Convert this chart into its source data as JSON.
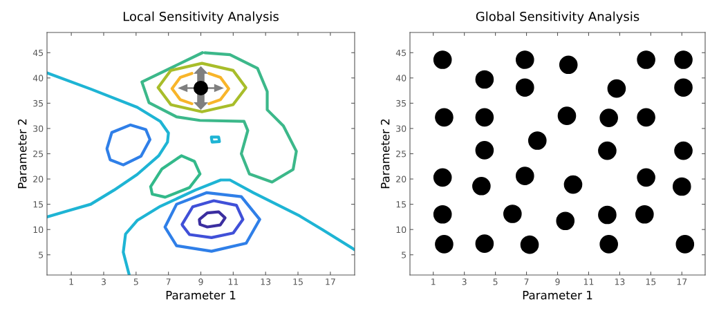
{
  "chart_data": [
    {
      "type": "line",
      "title": "Local Sensitivity Analysis",
      "xlabel": "Parameter 1",
      "ylabel": "Parameter 2",
      "xlim": [
        -0.5,
        18.5
      ],
      "ylim": [
        1,
        49
      ],
      "xticks": [
        1,
        3,
        5,
        7,
        9,
        11,
        13,
        15,
        17
      ],
      "yticks": [
        5,
        10,
        15,
        20,
        25,
        30,
        35,
        40,
        45
      ],
      "grid": false,
      "line_style": "solid",
      "series": [
        {
          "color": "#1eb4d4",
          "x": [
            -0.5,
            2.2,
            5.07,
            6.5,
            7.0,
            6.94,
            6.4,
            5.07,
            3.64,
            2.2,
            0.77,
            -0.5
          ],
          "values": [
            41.0,
            37.8,
            34.2,
            31.4,
            29.1,
            27.3,
            24.6,
            20.9,
            17.8,
            15.0,
            13.7,
            12.5
          ]
        },
        {
          "color": "#1eb4d4",
          "x": [
            4.57,
            4.21,
            4.35,
            5.07,
            6.5,
            8.66,
            10.23,
            10.8,
            12.24,
            13.67,
            15.1,
            16.5,
            18.5
          ],
          "values": [
            1.1,
            5.5,
            9.1,
            11.8,
            14.6,
            17.8,
            19.8,
            19.8,
            17.3,
            15.0,
            12.7,
            10.0,
            6.0
          ]
        },
        {
          "color": "#1eb4d4",
          "x": [
            9.65,
            10.1,
            10.15,
            9.7,
            9.65
          ],
          "values": [
            28.3,
            28.3,
            27.4,
            27.3,
            28.15
          ]
        },
        {
          "color": "#2f7fe8",
          "x": [
            3.2,
            3.5,
            4.64,
            5.6,
            5.86,
            5.3,
            4.21,
            3.4,
            3.21
          ],
          "values": [
            26.0,
            29.2,
            30.7,
            29.8,
            27.8,
            24.5,
            22.8,
            23.8,
            25.85
          ]
        },
        {
          "color": "#33b98a",
          "x": [
            5.9,
            6.6,
            7.8,
            8.6,
            8.95,
            8.3,
            6.8,
            6.0,
            5.91
          ],
          "values": [
            18.5,
            22.0,
            24.6,
            23.5,
            21.0,
            18.3,
            16.4,
            17.0,
            18.35
          ]
        },
        {
          "color": "#3cb88a",
          "x": [
            9.1,
            5.36,
            5.8,
            7.5,
            8.94,
            11.67,
            11.9,
            11.5,
            12.0,
            13.4,
            14.7,
            14.9,
            14.1,
            13.1,
            13.1,
            12.5,
            10.8,
            9.25
          ],
          "values": [
            45.0,
            39.2,
            35.1,
            32.3,
            31.6,
            31.4,
            29.6,
            25.0,
            21.0,
            19.4,
            21.9,
            25.5,
            30.5,
            33.7,
            37.3,
            41.9,
            44.6,
            44.98
          ]
        },
        {
          "color": "#a8bd2a",
          "x": [
            11.78,
            10.99,
            9.07,
            7.15,
            6.36,
            7.15,
            9.07,
            10.99,
            11.76
          ],
          "values": [
            38.1,
            41.5,
            42.9,
            41.5,
            38.1,
            34.7,
            33.3,
            34.7,
            37.95
          ]
        },
        {
          "color": "#f8b52a",
          "x": [
            10.72,
            10.21,
            9.5,
            8.97,
            8.45,
            7.73,
            7.22,
            7.73,
            8.45,
            8.97,
            9.5,
            10.21,
            10.7
          ],
          "values": [
            37.9,
            40.1,
            40.9,
            null,
            40.9,
            40.1,
            37.9,
            35.7,
            34.9,
            null,
            34.9,
            35.7,
            37.75
          ]
        },
        {
          "color": "#2f7fe8",
          "x": [
            6.79,
            7.5,
            9.37,
            11.5,
            12.64,
            11.8,
            9.66,
            7.5,
            6.81
          ],
          "values": [
            10.5,
            15.0,
            17.3,
            16.5,
            12.0,
            7.3,
            5.7,
            6.8,
            10.35
          ]
        },
        {
          "color": "#4050d8",
          "x": [
            7.84,
            8.5,
            9.8,
            11.2,
            11.6,
            11.0,
            9.66,
            8.3,
            7.86
          ],
          "values": [
            11.0,
            14.5,
            15.7,
            14.8,
            12.0,
            9.3,
            8.4,
            9.0,
            10.85
          ]
        },
        {
          "color": "#3b2ea0",
          "x": [
            8.91,
            9.4,
            10.1,
            10.5,
            10.2,
            9.4,
            8.95,
            8.91
          ],
          "values": [
            12.0,
            13.3,
            13.5,
            12.3,
            10.9,
            10.5,
            11.0,
            11.85
          ]
        },
        {
          "type": "scatter",
          "marker": "circle",
          "color": "#000000",
          "x": [
            9.0
          ],
          "values": [
            38.0
          ]
        }
      ]
    },
    {
      "type": "scatter",
      "title": "Global Sensitivity Analysis",
      "xlabel": "Parameter 1",
      "ylabel": "Parameter 2",
      "xlim": [
        -0.5,
        18.5
      ],
      "ylim": [
        1,
        49
      ],
      "xticks": [
        1,
        3,
        5,
        7,
        9,
        11,
        13,
        15,
        17
      ],
      "yticks": [
        5,
        10,
        15,
        20,
        25,
        30,
        35,
        40,
        45
      ],
      "grid": false,
      "marker": "circle",
      "series": [
        {
          "color": "#000000",
          "x": [
            1.6,
            6.9,
            9.7,
            14.7,
            17.1,
            4.3,
            6.9,
            12.8,
            17.1,
            1.7,
            4.3,
            9.6,
            12.3,
            14.7,
            7.7,
            4.3,
            12.2,
            17.1,
            1.6,
            6.9,
            14.7,
            4.1,
            10.0,
            17.0,
            1.6,
            6.1,
            12.2,
            14.6,
            9.5,
            1.7,
            4.3,
            7.2,
            12.3,
            17.2
          ],
          "values": [
            43.6,
            43.6,
            42.6,
            43.6,
            43.6,
            39.7,
            38.1,
            37.9,
            38.1,
            32.2,
            32.2,
            32.5,
            32.1,
            32.2,
            27.6,
            25.7,
            25.6,
            25.6,
            20.3,
            20.6,
            20.3,
            18.6,
            18.9,
            18.5,
            13.0,
            13.1,
            12.9,
            13.0,
            11.7,
            7.1,
            7.2,
            7.0,
            7.1,
            7.1
          ]
        }
      ]
    }
  ]
}
